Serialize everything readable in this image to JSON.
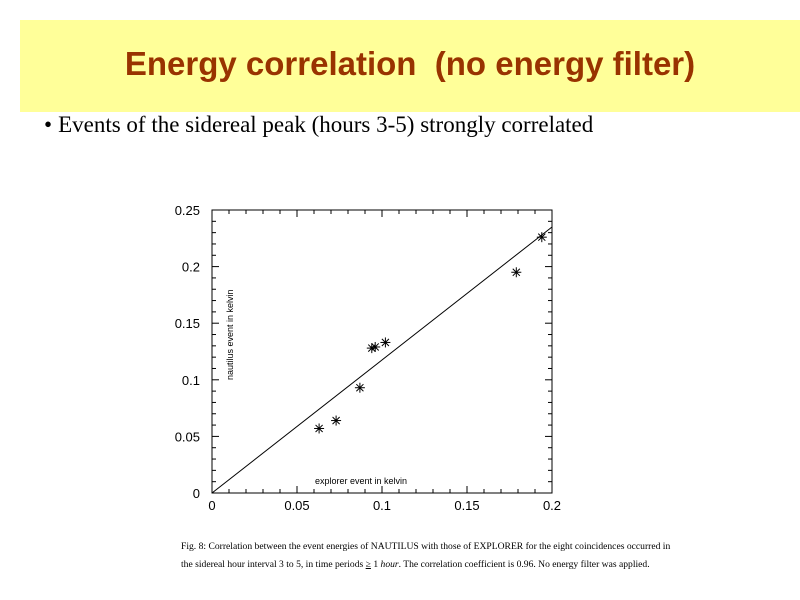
{
  "slide": {
    "title": "Energy correlation  (no energy filter)",
    "bullet": "Events of the sidereal peak (hours 3-5) strongly correlated",
    "accent_color": "#993300",
    "title_band_color": "#ffff99"
  },
  "caption": {
    "line1": "Fig. 8: Correlation between the event energies of NAUTILUS with those of EXPLORER for the eight coincidences occurred in",
    "line2_a": "the sidereal hour interval 3 to 5, in time periods",
    "line2_op": "≥",
    "line2_b": "1",
    "line2_unit": "hour",
    "line2_c": ". The correlation coefficient is 0.96. No energy filter was applied."
  },
  "chart_data": {
    "type": "scatter",
    "xlabel": "explorer event in kelvin",
    "ylabel": "nautilus event in kelvin",
    "xlim": [
      0,
      0.2
    ],
    "ylim": [
      0,
      0.25
    ],
    "xticks": [
      "0",
      "0.05",
      "0.1",
      "0.15",
      "0.2"
    ],
    "yticks": [
      "0",
      "0.05",
      "0.1",
      "0.15",
      "0.2",
      "0.25"
    ],
    "points": [
      {
        "x": 0.063,
        "y": 0.057
      },
      {
        "x": 0.073,
        "y": 0.064
      },
      {
        "x": 0.087,
        "y": 0.093
      },
      {
        "x": 0.094,
        "y": 0.128
      },
      {
        "x": 0.096,
        "y": 0.129
      },
      {
        "x": 0.102,
        "y": 0.133
      },
      {
        "x": 0.179,
        "y": 0.195
      },
      {
        "x": 0.194,
        "y": 0.226
      }
    ],
    "fit_line": {
      "x": [
        0,
        0.2
      ],
      "y": [
        0,
        0.235
      ]
    },
    "marker": "asterisk",
    "grid": false
  }
}
